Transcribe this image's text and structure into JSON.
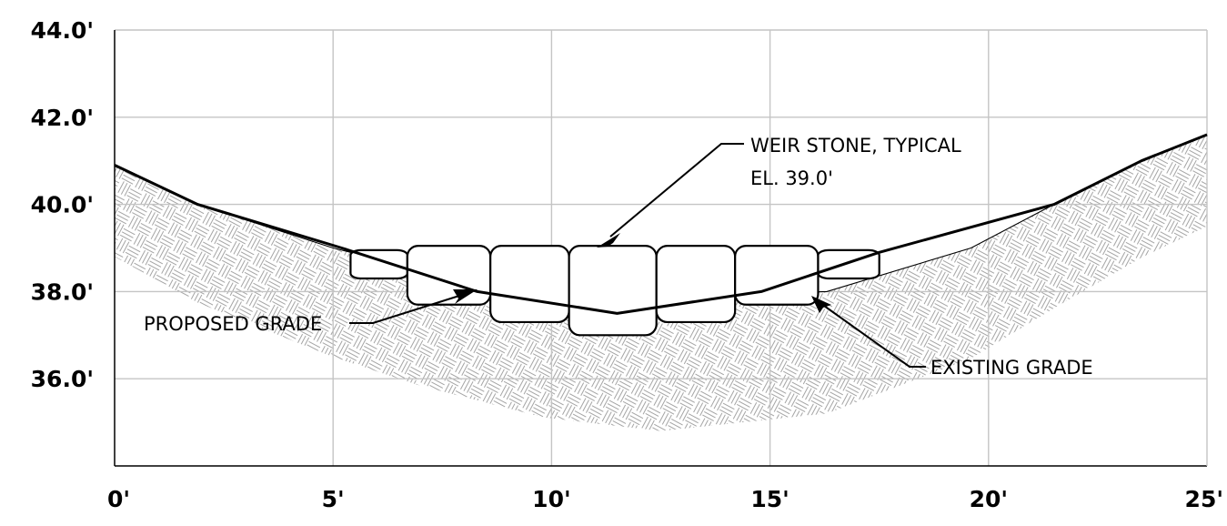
{
  "chart_data": {
    "type": "line",
    "x_ticks": [
      "0'",
      "5'",
      "10'",
      "15'",
      "20'",
      "25'"
    ],
    "y_ticks": [
      "36.0'",
      "38.0'",
      "40.0'",
      "42.0'",
      "44.0'"
    ],
    "xlim": [
      0,
      25
    ],
    "ylim": [
      34,
      44
    ],
    "grid": true,
    "series": [
      {
        "name": "PROPOSED GRADE",
        "x": [
          0,
          1.9,
          5.2,
          8.3,
          11.5,
          14.8,
          17.5,
          21.5,
          23.5,
          25
        ],
        "y": [
          40.9,
          40.0,
          39.0,
          38.0,
          37.5,
          38.0,
          38.9,
          40.0,
          41.0,
          41.6
        ]
      },
      {
        "name": "EXISTING GRADE",
        "x": [
          0,
          1.9,
          5.0,
          7.0,
          9.8,
          12.5,
          16.3,
          19.6,
          21.5,
          23.5,
          25
        ],
        "y": [
          40.9,
          40.0,
          39.0,
          38.5,
          38.0,
          37.9,
          38.0,
          39.0,
          40.0,
          41.0,
          41.6
        ]
      }
    ],
    "weir_stones": [
      {
        "x0": 5.4,
        "x1": 6.7,
        "y0": 38.3,
        "y1": 38.95
      },
      {
        "x0": 6.7,
        "x1": 8.6,
        "y0": 37.7,
        "y1": 39.05
      },
      {
        "x0": 8.6,
        "x1": 10.4,
        "y0": 37.3,
        "y1": 39.05
      },
      {
        "x0": 10.4,
        "x1": 12.4,
        "y0": 37.0,
        "y1": 39.05
      },
      {
        "x0": 12.4,
        "x1": 14.2,
        "y0": 37.3,
        "y1": 39.05
      },
      {
        "x0": 14.2,
        "x1": 16.1,
        "y0": 37.7,
        "y1": 39.05
      },
      {
        "x0": 16.1,
        "x1": 17.5,
        "y0": 38.3,
        "y1": 38.95
      }
    ],
    "annotations": [
      {
        "key": "weir",
        "lines": [
          "WEIR STONE, TYPICAL",
          "EL. 39.0'"
        ]
      },
      {
        "key": "proposed",
        "lines": [
          "PROPOSED GRADE"
        ]
      },
      {
        "key": "existing",
        "lines": [
          "EXISTING GRADE"
        ]
      }
    ]
  }
}
